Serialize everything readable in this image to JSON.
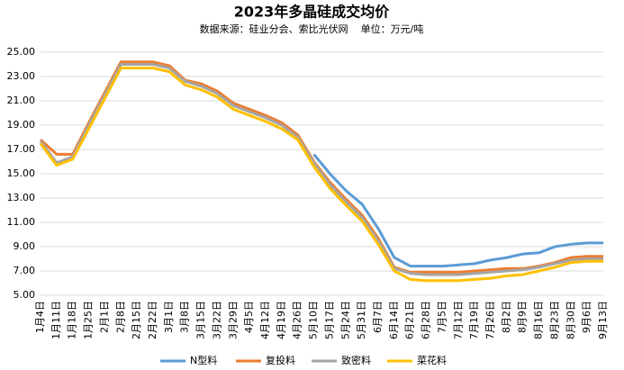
{
  "chart_data": {
    "type": "line",
    "title": "2023年多晶硅成交均价",
    "subtitle": "数据来源：硅业分会、索比光伏网    单位：万元/吨",
    "categories": [
      "1月4日",
      "1月11日",
      "1月18日",
      "1月25日",
      "2月1日",
      "2月8日",
      "2月15日",
      "2月22日",
      "3月1日",
      "3月8日",
      "3月15日",
      "3月22日",
      "3月29日",
      "4月5日",
      "4月12日",
      "4月19日",
      "4月26日",
      "5月10日",
      "5月17日",
      "5月24日",
      "5月31日",
      "6月7日",
      "6月14日",
      "6月21日",
      "6月28日",
      "7月5日",
      "7月12日",
      "7月19日",
      "7月26日",
      "8月2日",
      "8月9日",
      "8月16日",
      "8月23日",
      "8月30日",
      "9月6日",
      "9月13日"
    ],
    "series": [
      {
        "name": "N型料",
        "color": "#5b9bd5",
        "values": [
          null,
          null,
          null,
          null,
          null,
          null,
          null,
          null,
          null,
          null,
          null,
          null,
          null,
          null,
          null,
          null,
          null,
          16.6,
          15.0,
          13.6,
          12.5,
          10.5,
          8.1,
          7.4,
          7.4,
          7.4,
          7.5,
          7.6,
          7.9,
          8.1,
          8.4,
          8.5,
          9.0,
          9.2,
          9.3,
          9.3
        ]
      },
      {
        "name": "复投料",
        "color": "#ed7d31",
        "values": [
          17.8,
          16.6,
          16.6,
          19.2,
          21.7,
          24.2,
          24.2,
          24.2,
          23.9,
          22.7,
          22.4,
          21.8,
          20.8,
          20.3,
          19.8,
          19.2,
          18.2,
          16.0,
          14.3,
          12.9,
          11.6,
          9.7,
          7.3,
          6.9,
          6.9,
          6.9,
          6.9,
          7.0,
          7.1,
          7.2,
          7.2,
          7.4,
          7.7,
          8.1,
          8.2,
          8.2
        ]
      },
      {
        "name": "致密料",
        "color": "#a5a5a5",
        "values": [
          17.7,
          15.9,
          16.4,
          19.0,
          21.5,
          24.0,
          24.0,
          24.0,
          23.7,
          22.6,
          22.2,
          21.6,
          20.6,
          20.1,
          19.6,
          19.0,
          18.0,
          15.9,
          14.1,
          12.7,
          11.4,
          9.5,
          7.2,
          6.8,
          6.7,
          6.7,
          6.7,
          6.8,
          6.9,
          7.0,
          7.1,
          7.3,
          7.6,
          7.9,
          8.0,
          8.0
        ]
      },
      {
        "name": "菜花料",
        "color": "#ffc000",
        "values": [
          17.5,
          15.7,
          16.2,
          18.7,
          21.2,
          23.7,
          23.7,
          23.7,
          23.4,
          22.3,
          21.9,
          21.3,
          20.3,
          19.8,
          19.3,
          18.7,
          17.8,
          15.6,
          13.8,
          12.4,
          11.1,
          9.2,
          7.0,
          6.3,
          6.2,
          6.2,
          6.2,
          6.3,
          6.4,
          6.6,
          6.7,
          7.0,
          7.3,
          7.7,
          7.8,
          7.8
        ]
      }
    ],
    "ylim": [
      5,
      25
    ],
    "yticks": [
      {
        "value": 5,
        "label": "5.00"
      },
      {
        "value": 7,
        "label": "7.00"
      },
      {
        "value": 9,
        "label": "9.00"
      },
      {
        "value": 11,
        "label": "11.00"
      },
      {
        "value": 13,
        "label": "13.00"
      },
      {
        "value": 15,
        "label": "15.00"
      },
      {
        "value": 17,
        "label": "17.00"
      },
      {
        "value": 19,
        "label": "19.00"
      },
      {
        "value": 21,
        "label": "21.00"
      },
      {
        "value": 23,
        "label": "23.00"
      },
      {
        "value": 25,
        "label": "25.00"
      }
    ],
    "grid": true,
    "legend": "bottom"
  }
}
